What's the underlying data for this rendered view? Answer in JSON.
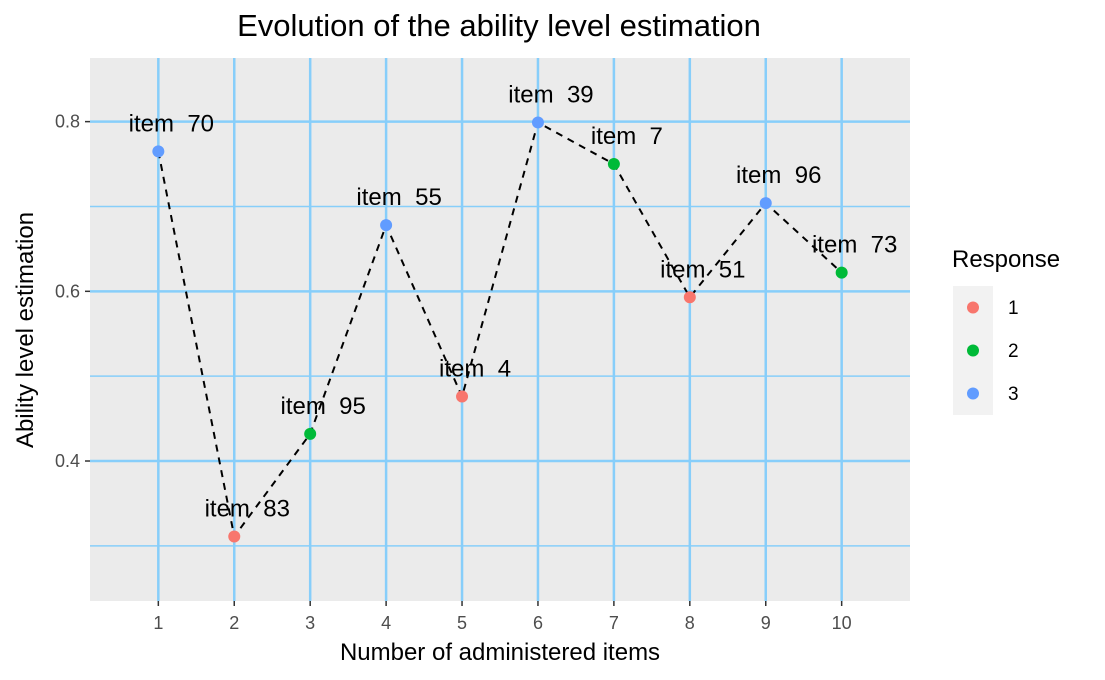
{
  "chart_data": {
    "type": "scatter",
    "title": "Evolution of the ability level estimation",
    "xlabel": "Number of administered items",
    "ylabel": "Ability level estimation",
    "xlim": [
      0.1,
      10.9
    ],
    "ylim": [
      0.235,
      0.875
    ],
    "x_ticks": [
      1,
      2,
      3,
      4,
      5,
      6,
      7,
      8,
      9,
      10
    ],
    "x_minor": [],
    "y_ticks": [
      0.4,
      0.6,
      0.8
    ],
    "y_minor": [
      0.3,
      0.5,
      0.7
    ],
    "grid": true,
    "connector": "dashed",
    "points": [
      {
        "x": 1,
        "y": 0.765,
        "label": "item  70",
        "response": "3"
      },
      {
        "x": 2,
        "y": 0.311,
        "label": "item  83",
        "response": "1"
      },
      {
        "x": 3,
        "y": 0.432,
        "label": "item  95",
        "response": "2"
      },
      {
        "x": 4,
        "y": 0.678,
        "label": "item  55",
        "response": "3"
      },
      {
        "x": 5,
        "y": 0.476,
        "label": "item  4",
        "response": "1"
      },
      {
        "x": 6,
        "y": 0.799,
        "label": "item  39",
        "response": "3"
      },
      {
        "x": 7,
        "y": 0.75,
        "label": "item  7",
        "response": "2"
      },
      {
        "x": 8,
        "y": 0.593,
        "label": "item  51",
        "response": "1"
      },
      {
        "x": 9,
        "y": 0.704,
        "label": "item  96",
        "response": "3"
      },
      {
        "x": 10,
        "y": 0.622,
        "label": "item  73",
        "response": "2"
      }
    ],
    "legend": {
      "title": "Response",
      "position": "right",
      "items": [
        {
          "label": "1",
          "color": "#F8766D"
        },
        {
          "label": "2",
          "color": "#00BA38"
        },
        {
          "label": "3",
          "color": "#619CFF"
        }
      ]
    },
    "colors": {
      "panel": "#EBEBEB",
      "grid": "#87CEFA",
      "legend_key": "#F2F2F2"
    }
  }
}
